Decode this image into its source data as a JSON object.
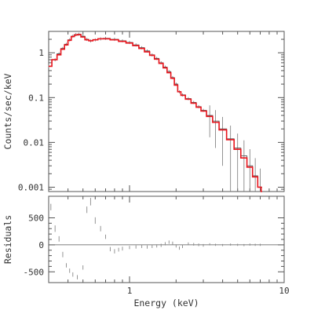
{
  "chart_data": [
    {
      "type": "line",
      "xlabel": "",
      "ylabel": "Counts/sec/keV",
      "xscale": "log",
      "yscale": "log",
      "xlim": [
        0.3,
        10
      ],
      "ylim": [
        0.0008,
        3
      ],
      "y_tick_labels": [
        "0.001",
        "0.01",
        "0.1",
        "1"
      ],
      "y_ticks": [
        0.001,
        0.01,
        0.1,
        1
      ],
      "x_tick_labels": [],
      "grid": false,
      "series": [
        {
          "style": "data-steps-with-errorbars",
          "color": "#555555",
          "points": [
            [
              0.3,
              0.5
            ],
            [
              0.33,
              0.7
            ],
            [
              0.35,
              0.95
            ],
            [
              0.37,
              1.25
            ],
            [
              0.39,
              1.55
            ],
            [
              0.41,
              1.95
            ],
            [
              0.43,
              2.35
            ],
            [
              0.45,
              2.55
            ],
            [
              0.47,
              2.6
            ],
            [
              0.5,
              2.35
            ],
            [
              0.53,
              2.0
            ],
            [
              0.56,
              1.85
            ],
            [
              0.6,
              1.95
            ],
            [
              0.65,
              2.05
            ],
            [
              0.7,
              2.1
            ],
            [
              0.8,
              2.0
            ],
            [
              0.9,
              1.85
            ],
            [
              1.0,
              1.7
            ],
            [
              1.1,
              1.5
            ],
            [
              1.2,
              1.3
            ],
            [
              1.3,
              1.1
            ],
            [
              1.4,
              0.9
            ],
            [
              1.5,
              0.75
            ],
            [
              1.6,
              0.6
            ],
            [
              1.7,
              0.48
            ],
            [
              1.8,
              0.38
            ],
            [
              1.9,
              0.28
            ],
            [
              2.0,
              0.2
            ],
            [
              2.1,
              0.135
            ],
            [
              2.2,
              0.115
            ],
            [
              2.4,
              0.095
            ],
            [
              2.6,
              0.078
            ],
            [
              2.8,
              0.063
            ],
            [
              3.0,
              0.052
            ],
            [
              3.3,
              0.04
            ],
            [
              3.6,
              0.03
            ],
            [
              4.0,
              0.02
            ],
            [
              4.5,
              0.012
            ],
            [
              5.0,
              0.0075
            ],
            [
              5.5,
              0.005
            ],
            [
              6.0,
              0.003
            ],
            [
              6.5,
              0.0018
            ],
            [
              7.0,
              0.001
            ]
          ]
        },
        {
          "style": "model",
          "color": "#e8141c",
          "points": [
            [
              0.3,
              0.5
            ],
            [
              0.33,
              0.7
            ],
            [
              0.35,
              0.9
            ],
            [
              0.37,
              1.2
            ],
            [
              0.39,
              1.5
            ],
            [
              0.41,
              1.9
            ],
            [
              0.43,
              2.3
            ],
            [
              0.45,
              2.5
            ],
            [
              0.47,
              2.55
            ],
            [
              0.5,
              2.25
            ],
            [
              0.53,
              1.95
            ],
            [
              0.56,
              1.85
            ],
            [
              0.6,
              1.95
            ],
            [
              0.65,
              2.05
            ],
            [
              0.7,
              2.05
            ],
            [
              0.8,
              1.95
            ],
            [
              0.9,
              1.8
            ],
            [
              1.0,
              1.65
            ],
            [
              1.1,
              1.45
            ],
            [
              1.2,
              1.25
            ],
            [
              1.3,
              1.05
            ],
            [
              1.4,
              0.88
            ],
            [
              1.5,
              0.72
            ],
            [
              1.6,
              0.58
            ],
            [
              1.7,
              0.46
            ],
            [
              1.8,
              0.36
            ],
            [
              1.9,
              0.27
            ],
            [
              2.0,
              0.19
            ],
            [
              2.1,
              0.135
            ],
            [
              2.2,
              0.112
            ],
            [
              2.4,
              0.092
            ],
            [
              2.6,
              0.075
            ],
            [
              2.8,
              0.061
            ],
            [
              3.0,
              0.05
            ],
            [
              3.3,
              0.038
            ],
            [
              3.6,
              0.028
            ],
            [
              4.0,
              0.019
            ],
            [
              4.5,
              0.0115
            ],
            [
              5.0,
              0.007
            ],
            [
              5.5,
              0.0045
            ],
            [
              6.0,
              0.0028
            ],
            [
              6.5,
              0.0017
            ],
            [
              7.0,
              0.001
            ],
            [
              7.2,
              0.0008
            ]
          ]
        }
      ]
    },
    {
      "type": "scatter",
      "xlabel": "Energy (keV)",
      "ylabel": "Residuals",
      "xscale": "log",
      "xlim": [
        0.3,
        10
      ],
      "ylim": [
        -700,
        900
      ],
      "y_ticks": [
        -500,
        0,
        500
      ],
      "y_tick_labels": [
        "-500",
        "0",
        "500"
      ],
      "x_ticks": [
        1,
        10
      ],
      "x_tick_labels": [
        "1",
        "10"
      ],
      "zero_line": 0,
      "grid": false,
      "series": [
        {
          "style": "errorbars",
          "color": "#888888",
          "points": [
            [
              0.31,
              700,
              60
            ],
            [
              0.33,
              300,
              60
            ],
            [
              0.35,
              110,
              50
            ],
            [
              0.37,
              -180,
              50
            ],
            [
              0.39,
              -380,
              40
            ],
            [
              0.41,
              -480,
              40
            ],
            [
              0.43,
              -550,
              40
            ],
            [
              0.46,
              -600,
              40
            ],
            [
              0.5,
              -420,
              40
            ],
            [
              0.53,
              650,
              60
            ],
            [
              0.56,
              800,
              70
            ],
            [
              0.6,
              450,
              60
            ],
            [
              0.65,
              300,
              50
            ],
            [
              0.7,
              150,
              40
            ],
            [
              0.75,
              -80,
              40
            ],
            [
              0.8,
              -120,
              40
            ],
            [
              0.85,
              -90,
              35
            ],
            [
              0.9,
              -70,
              35
            ],
            [
              1.0,
              -50,
              30
            ],
            [
              1.1,
              -40,
              30
            ],
            [
              1.2,
              -30,
              30
            ],
            [
              1.3,
              -40,
              30
            ],
            [
              1.4,
              -30,
              30
            ],
            [
              1.5,
              -20,
              30
            ],
            [
              1.6,
              -10,
              30
            ],
            [
              1.7,
              20,
              30
            ],
            [
              1.8,
              50,
              30
            ],
            [
              1.9,
              30,
              30
            ],
            [
              2.0,
              -20,
              30
            ],
            [
              2.1,
              -60,
              30
            ],
            [
              2.2,
              -30,
              30
            ],
            [
              2.4,
              20,
              25
            ],
            [
              2.6,
              10,
              25
            ],
            [
              2.8,
              0,
              25
            ],
            [
              3.0,
              -10,
              25
            ],
            [
              3.3,
              10,
              20
            ],
            [
              3.6,
              0,
              20
            ],
            [
              4.0,
              -5,
              20
            ],
            [
              4.5,
              5,
              20
            ],
            [
              5.0,
              0,
              20
            ],
            [
              5.5,
              -5,
              20
            ],
            [
              6.0,
              5,
              20
            ],
            [
              6.5,
              0,
              20
            ],
            [
              7.0,
              0,
              20
            ]
          ]
        }
      ]
    }
  ]
}
